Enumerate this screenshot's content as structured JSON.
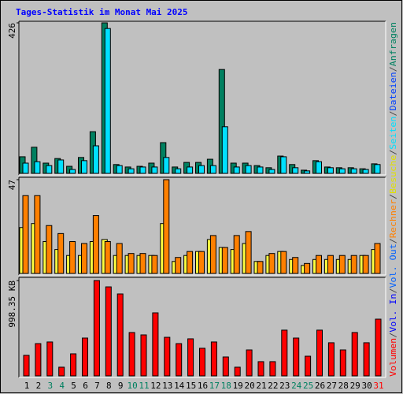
{
  "title": "Tages-Statistik im Monat Mai 2025",
  "legend": {
    "separator": "/",
    "entries": [
      {
        "name": "Volumen",
        "color": "#ff0000"
      },
      {
        "name": "Vol. In",
        "color": "#0000ff"
      },
      {
        "name": "Vol. Out",
        "color": "#0060ff"
      },
      {
        "name": "Rechner",
        "color": "#ff8000"
      },
      {
        "name": "Besuche",
        "color": "#e0e000"
      },
      {
        "name": "Seiten",
        "color": "#00e0ff"
      },
      {
        "name": "Dateien",
        "color": "#0040ff"
      },
      {
        "name": "Anfragen",
        "color": "#008060"
      }
    ]
  },
  "chart_data": [
    {
      "type": "bar",
      "ylim": [
        0,
        426
      ],
      "yticks": [
        426
      ],
      "series": [
        {
          "color": "#008060",
          "values": [
            47,
            74,
            29,
            42,
            20,
            45,
            118,
            426,
            25,
            18,
            20,
            29,
            87,
            18,
            31,
            31,
            40,
            294,
            29,
            29,
            22,
            16,
            49,
            25,
            9,
            36,
            18,
            16,
            16,
            13,
            27
          ]
        },
        {
          "color": "#00e0ff",
          "values": [
            29,
            33,
            22,
            38,
            11,
            36,
            78,
            410,
            22,
            13,
            18,
            18,
            45,
            13,
            18,
            22,
            22,
            132,
            18,
            22,
            18,
            11,
            47,
            16,
            7,
            33,
            16,
            13,
            13,
            11,
            25
          ]
        }
      ]
    },
    {
      "type": "bar",
      "ylim": [
        0,
        47
      ],
      "yticks": [
        47
      ],
      "series": [
        {
          "color": "#ffff40",
          "values": [
            23,
            25,
            16,
            12,
            9,
            9,
            16,
            17,
            9,
            9,
            9,
            9,
            25,
            6,
            9,
            11,
            17,
            13,
            12,
            15,
            6,
            9,
            11,
            7,
            4,
            7,
            7,
            7,
            7,
            9,
            12
          ]
        },
        {
          "color": "#ff8000",
          "values": [
            39,
            39,
            24,
            20,
            16,
            15,
            29,
            16,
            15,
            10,
            10,
            9,
            47,
            8,
            11,
            11,
            19,
            13,
            19,
            21,
            6,
            10,
            11,
            8,
            5,
            9,
            9,
            9,
            9,
            9,
            15
          ]
        }
      ]
    },
    {
      "type": "bar",
      "ylim": [
        0,
        998.35
      ],
      "yticks": [
        {
          "value": 998.35,
          "label": "998.35 KB"
        }
      ],
      "categories": [
        "1",
        "2",
        "3",
        "4",
        "5",
        "6",
        "7",
        "8",
        "9",
        "10",
        "11",
        "12",
        "13",
        "14",
        "15",
        "16",
        "17",
        "18",
        "19",
        "20",
        "21",
        "22",
        "23",
        "24",
        "25",
        "26",
        "27",
        "28",
        "29",
        "30",
        "31"
      ],
      "category_colors": [
        "#000000",
        "#000000",
        "#008060",
        "#008060",
        "#000000",
        "#000000",
        "#000000",
        "#000000",
        "#000000",
        "#008060",
        "#008060",
        "#000000",
        "#000000",
        "#000000",
        "#000000",
        "#000000",
        "#008060",
        "#008060",
        "#000000",
        "#000000",
        "#000000",
        "#000000",
        "#000000",
        "#008060",
        "#008060",
        "#000000",
        "#000000",
        "#000000",
        "#000000",
        "#000000",
        "#ff0000"
      ],
      "series": [
        {
          "color": "#ff0000",
          "values": [
            215,
            338,
            355,
            91,
            231,
            396,
            998.35,
            932,
            858,
            454,
            429,
            660,
            404,
            338,
            388,
            289,
            355,
            198,
            91,
            272,
            149,
            149,
            479,
            396,
            206,
            479,
            347,
            272,
            454,
            347,
            594
          ]
        }
      ]
    }
  ]
}
